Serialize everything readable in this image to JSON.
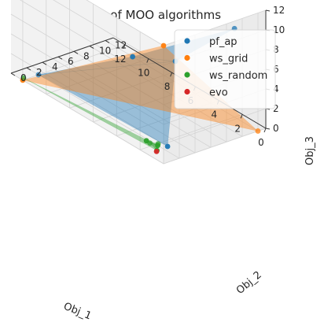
{
  "chart_data": {
    "type": "scatter",
    "title": "Pareto frontiers of MOO algorithms",
    "xlabel": "Obj_1",
    "ylabel": "Obj_2",
    "zlabel": "Obj_3",
    "xlim": [
      0,
      13
    ],
    "ylim": [
      0,
      13
    ],
    "zlim": [
      0,
      12
    ],
    "x_ticks": [
      "0",
      "2",
      "4",
      "6",
      "8",
      "10",
      "12"
    ],
    "y_ticks": [
      "0",
      "2",
      "4",
      "6",
      "8",
      "10",
      "12"
    ],
    "z_ticks": [
      "0",
      "2",
      "4",
      "6",
      "8",
      "10",
      "12"
    ],
    "legend_position": "top-right",
    "grid": true,
    "series": [
      {
        "name": "pf_ap",
        "color": "#1f77b4",
        "surface": true,
        "points": [
          [
            0,
            1.5,
            10
          ],
          [
            2,
            12,
            9
          ],
          [
            8,
            8,
            3
          ],
          [
            12,
            2,
            0
          ],
          [
            1,
            2,
            0.5
          ]
        ]
      },
      {
        "name": "ws_grid",
        "color": "#ff7f0e",
        "surface": true,
        "points": [
          [
            0,
            0,
            12
          ],
          [
            0,
            12,
            0
          ],
          [
            12,
            0,
            0
          ]
        ]
      },
      {
        "name": "ws_random",
        "color": "#2ca02c",
        "surface": true,
        "points": [
          [
            0.5,
            0,
            1.5
          ],
          [
            1,
            0.8,
            1.1
          ],
          [
            2,
            0.8,
            0.7
          ],
          [
            1.5,
            0.5,
            0.9
          ],
          [
            0.7,
            0.2,
            0.8
          ],
          [
            12,
            0.1,
            0.2
          ]
        ]
      },
      {
        "name": "evo",
        "color": "#d62728",
        "surface": false,
        "points": [
          [
            0.8,
            0.3,
            0.6
          ]
        ]
      }
    ]
  }
}
